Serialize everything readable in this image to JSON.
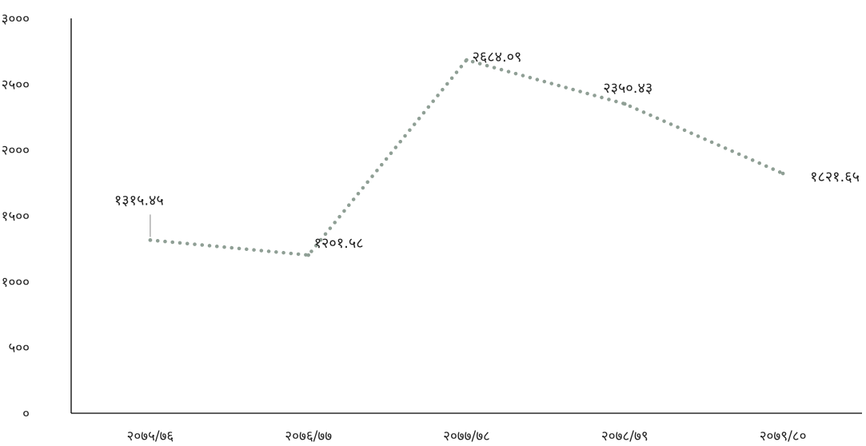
{
  "chart_data": {
    "type": "line",
    "categories": [
      "२०७५/७६",
      "२०७६/७७",
      "२०७७/७८",
      "२०७८/७९",
      "२०७९/८०"
    ],
    "series": [
      {
        "values": [
          1315.45,
          1201.58,
          2684.09,
          2350.43,
          1821.65
        ],
        "color": "#8f9f95"
      }
    ],
    "data_labels": [
      "१३१५.४५",
      "१२०१.५८",
      "२६८४.०९",
      "२३५०.४३",
      "१८२१.६५"
    ],
    "y_tick_values": [
      0,
      500,
      1000,
      1500,
      2000,
      2500,
      3000
    ],
    "y_tick_labels": [
      "०",
      "५००",
      "१०००",
      "१५००",
      "२०००",
      "२५००",
      "३०००"
    ],
    "ylim": [
      0,
      3000
    ],
    "line_style": "dotted",
    "grid": false,
    "legend": "none",
    "title": "",
    "xlabel": "",
    "ylabel": ""
  }
}
